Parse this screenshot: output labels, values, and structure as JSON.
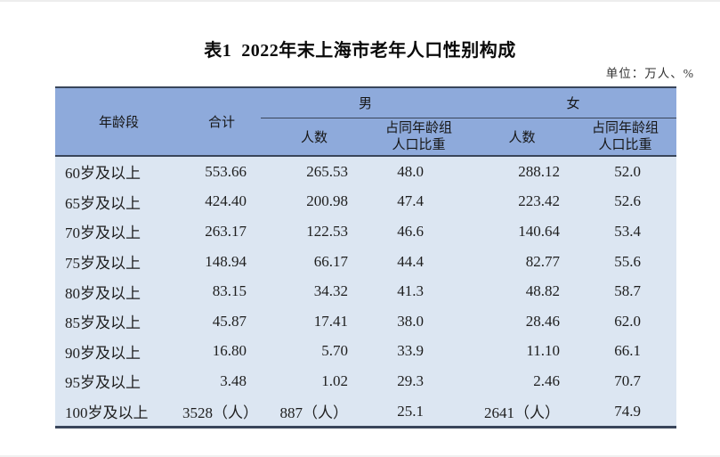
{
  "page": {
    "title": "表1  2022年末上海市老年人口性别构成",
    "unit_note": "单位：万人、%"
  },
  "colors": {
    "header_bg": "#8EAADB",
    "body_bg": "#DCE6F2",
    "border": "#39455A"
  },
  "table": {
    "headers": {
      "age_group": "年龄段",
      "total": "合计",
      "male_group": "男",
      "female_group": "女",
      "count": "人数",
      "share_line1": "占同年龄组",
      "share_line2": "人口比重"
    },
    "rows": [
      {
        "age": "60岁及以上",
        "total": "553.66",
        "male_count": "265.53",
        "male_share": "48.0",
        "female_count": "288.12",
        "female_share": "52.0"
      },
      {
        "age": "65岁及以上",
        "total": "424.40",
        "male_count": "200.98",
        "male_share": "47.4",
        "female_count": "223.42",
        "female_share": "52.6"
      },
      {
        "age": "70岁及以上",
        "total": "263.17",
        "male_count": "122.53",
        "male_share": "46.6",
        "female_count": "140.64",
        "female_share": "53.4"
      },
      {
        "age": "75岁及以上",
        "total": "148.94",
        "male_count": "66.17",
        "male_share": "44.4",
        "female_count": "82.77",
        "female_share": "55.6"
      },
      {
        "age": "80岁及以上",
        "total": "83.15",
        "male_count": "34.32",
        "male_share": "41.3",
        "female_count": "48.82",
        "female_share": "58.7"
      },
      {
        "age": "85岁及以上",
        "total": "45.87",
        "male_count": "17.41",
        "male_share": "38.0",
        "female_count": "28.46",
        "female_share": "62.0"
      },
      {
        "age": "90岁及以上",
        "total": "16.80",
        "male_count": "5.70",
        "male_share": "33.9",
        "female_count": "11.10",
        "female_share": "66.1"
      },
      {
        "age": "95岁及以上",
        "total": "3.48",
        "male_count": "1.02",
        "male_share": "29.3",
        "female_count": "2.46",
        "female_share": "70.7"
      },
      {
        "age": "100岁及以上",
        "total": "3528（人）",
        "male_count": "887（人）",
        "male_share": "25.1",
        "female_count": "2641（人）",
        "female_share": "74.9"
      }
    ]
  }
}
